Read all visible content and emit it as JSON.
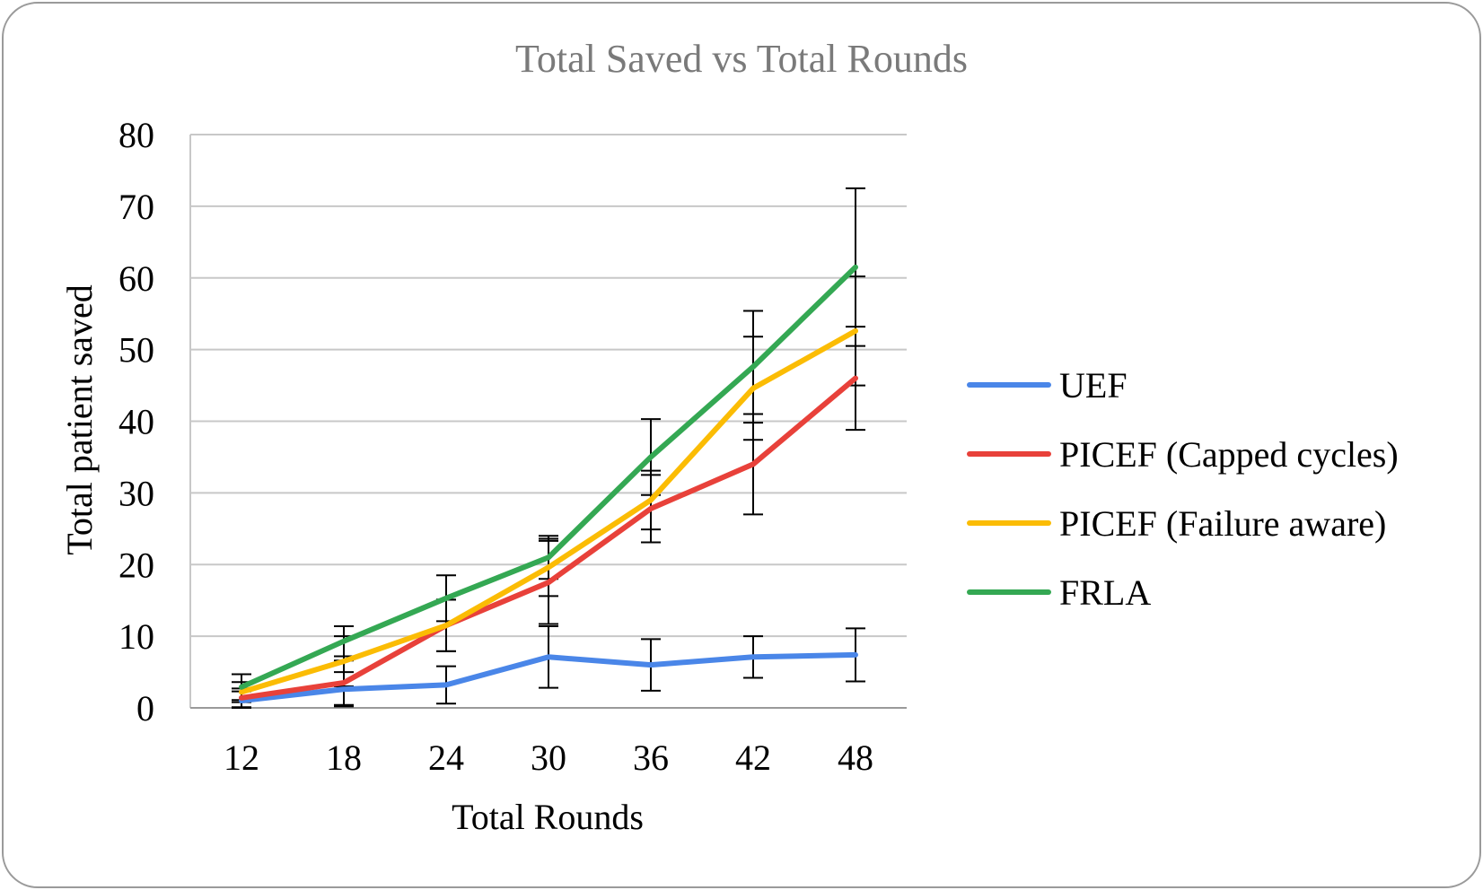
{
  "chart_data": {
    "type": "line",
    "title": "Total Saved vs Total Rounds",
    "xlabel": "Total Rounds",
    "ylabel": "Total patient saved",
    "x": [
      12,
      18,
      24,
      30,
      36,
      42,
      48
    ],
    "ylim": [
      0,
      80
    ],
    "yticks": [
      0,
      10,
      20,
      30,
      40,
      50,
      60,
      70,
      80
    ],
    "grid": "horizontal",
    "legend_position": "right",
    "series": [
      {
        "name": "UEF",
        "color": "#4a86e8",
        "values": [
          1.0,
          2.6,
          3.2,
          7.1,
          6.0,
          7.1,
          7.4
        ],
        "error": [
          1.3,
          2.4,
          2.6,
          4.3,
          3.6,
          2.9,
          3.7
        ]
      },
      {
        "name": "PICEF (Capped cycles)",
        "color": "#e8413a",
        "values": [
          1.4,
          3.5,
          11.5,
          17.5,
          27.8,
          34.0,
          46.0
        ],
        "error": [
          1.3,
          3.1,
          3.6,
          5.8,
          4.7,
          7.0,
          7.2
        ]
      },
      {
        "name": "PICEF (Failure aware)",
        "color": "#fbbc04",
        "values": [
          2.2,
          6.5,
          11.5,
          19.6,
          29.0,
          44.6,
          52.6
        ],
        "error": [
          1.4,
          3.5,
          3.6,
          4.0,
          4.1,
          7.2,
          7.6
        ]
      },
      {
        "name": "FRLA",
        "color": "#34a853",
        "values": [
          2.9,
          9.3,
          15.3,
          21.0,
          35.0,
          47.6,
          61.5
        ],
        "error": [
          1.8,
          2.1,
          3.2,
          3.0,
          5.3,
          7.8,
          11.0
        ]
      }
    ]
  }
}
